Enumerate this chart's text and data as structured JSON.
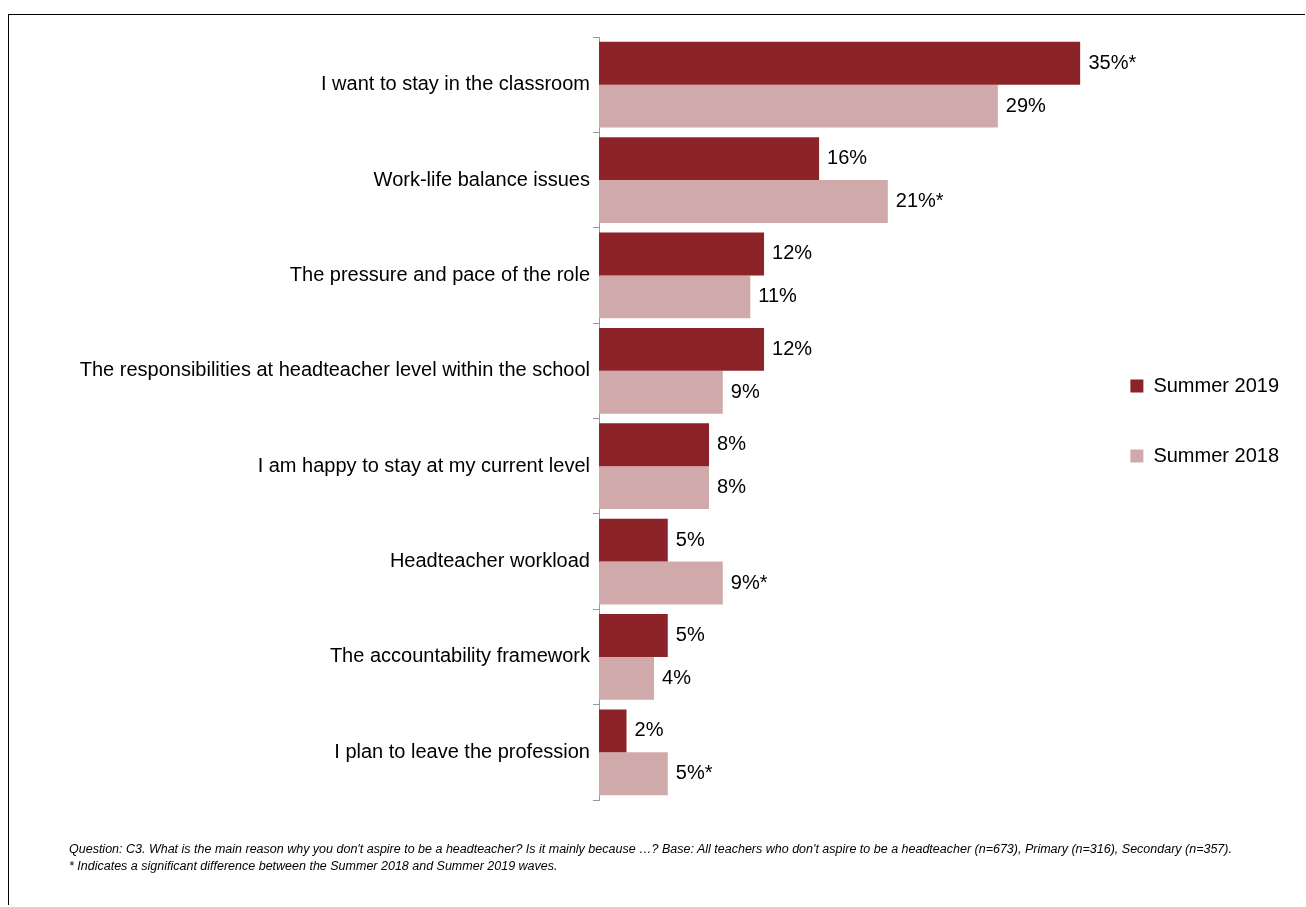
{
  "chart_data": {
    "type": "bar",
    "orientation": "horizontal",
    "tick_labels": "y",
    "grid": false,
    "legend": "right",
    "categories": [
      "I want to stay in the classroom",
      "Work-life balance issues",
      "The pressure and pace of the role",
      "The responsibilities at headteacher level within the school",
      "I am happy to stay at my current level",
      "Headteacher workload",
      "The accountability framework",
      "I plan to leave the profession"
    ],
    "series": [
      {
        "name": "Summer 2019",
        "color": "#8b2329",
        "values": [
          35,
          16,
          12,
          12,
          8,
          5,
          5,
          2
        ],
        "value_labels": [
          "35%*",
          "16%",
          "12%",
          "12%",
          "8%",
          "5%",
          "5%",
          "2%"
        ]
      },
      {
        "name": "Summer 2018",
        "color": "#d0a9aa",
        "values": [
          29,
          21,
          11,
          9,
          8,
          9,
          4,
          5
        ],
        "value_labels": [
          "29%",
          "21%*",
          "11%",
          "9%",
          "8%",
          "9%*",
          "4%",
          "5%*"
        ]
      }
    ],
    "annotations": [
      "Question: C3. What is the main reason why  you don't aspire to be a headteacher?  Is it mainly because …? Base: All teachers who  don't  aspire to be a headteacher (n=673), Primary (n=316), Secondary (n=357).",
      "* Indicates a significant difference between the Summer 2018 and Summer 2019 waves."
    ]
  }
}
